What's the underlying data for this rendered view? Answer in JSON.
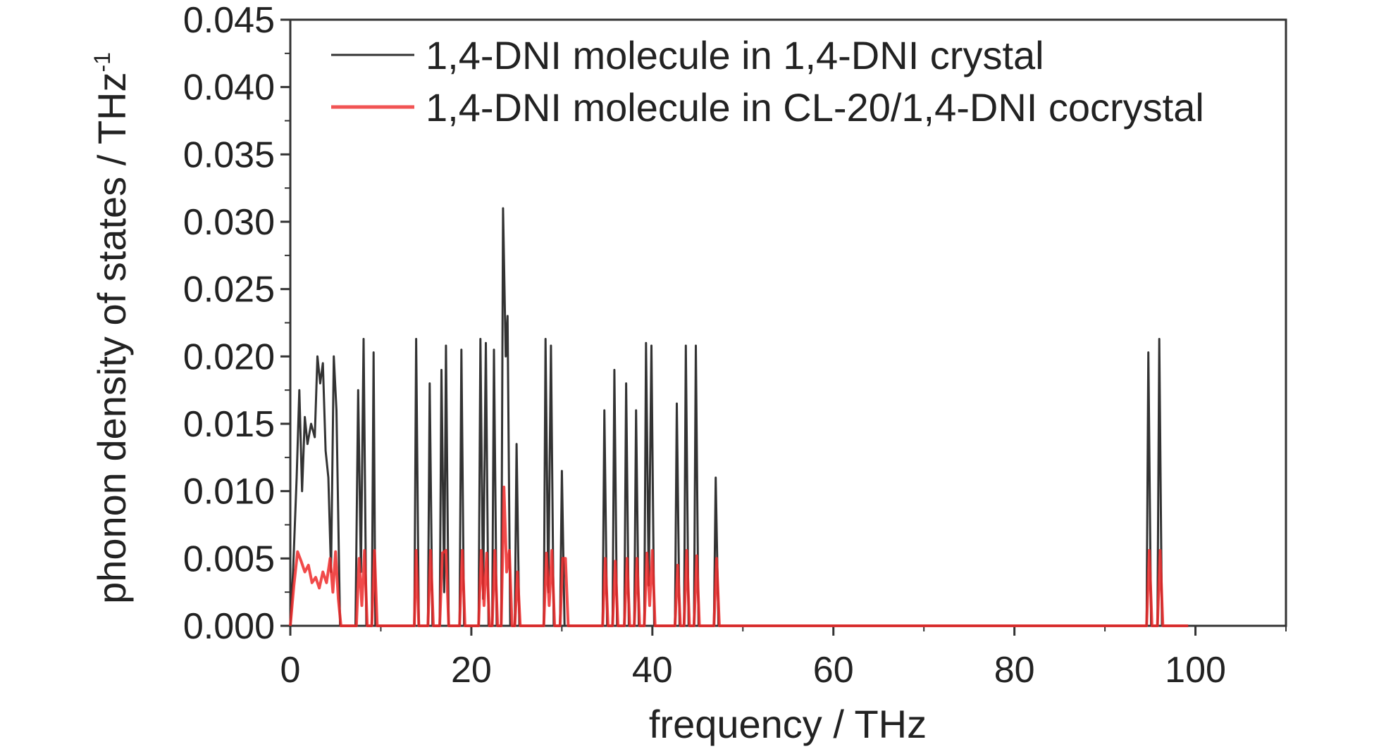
{
  "chart_data": {
    "type": "line",
    "title": "",
    "xlabel": "frequency / THz",
    "ylabel": "phonon density of states / THz",
    "ylabel_superscript": "-1",
    "xlim": [
      0,
      110
    ],
    "ylim": [
      0,
      0.045
    ],
    "x_ticks": [
      0,
      20,
      40,
      60,
      80,
      100
    ],
    "x_tick_labels": [
      "0",
      "20",
      "40",
      "60",
      "80",
      "100"
    ],
    "y_ticks": [
      0,
      0.005,
      0.01,
      0.015,
      0.02,
      0.025,
      0.03,
      0.035,
      0.04,
      0.045
    ],
    "y_tick_labels": [
      "0.000",
      "0.005",
      "0.010",
      "0.015",
      "0.020",
      "0.025",
      "0.030",
      "0.035",
      "0.040",
      "0.045"
    ],
    "grid": false,
    "legend_position": "top-left",
    "series": [
      {
        "name": "1,4-DNI molecule in 1,4-DNI crystal",
        "color": "#333333",
        "points": [
          [
            0,
            0
          ],
          [
            0.3,
            0.004
          ],
          [
            0.7,
            0.011
          ],
          [
            1.0,
            0.0175
          ],
          [
            1.3,
            0.01
          ],
          [
            1.6,
            0.0155
          ],
          [
            1.9,
            0.0135
          ],
          [
            2.3,
            0.015
          ],
          [
            2.7,
            0.014
          ],
          [
            3.0,
            0.02
          ],
          [
            3.3,
            0.018
          ],
          [
            3.6,
            0.0195
          ],
          [
            3.9,
            0.013
          ],
          [
            4.2,
            0.011
          ],
          [
            4.5,
            0.004
          ],
          [
            4.8,
            0.02
          ],
          [
            5.1,
            0.016
          ],
          [
            5.5,
            0
          ],
          [
            7.2,
            0
          ],
          [
            7.5,
            0.0175
          ],
          [
            7.8,
            0.004
          ],
          [
            8.1,
            0.0213
          ],
          [
            8.4,
            0
          ],
          [
            9.0,
            0
          ],
          [
            9.2,
            0.0203
          ],
          [
            9.4,
            0
          ],
          [
            13.7,
            0
          ],
          [
            13.9,
            0.0213
          ],
          [
            14.2,
            0
          ],
          [
            15.2,
            0
          ],
          [
            15.4,
            0.018
          ],
          [
            15.7,
            0
          ],
          [
            16.5,
            0
          ],
          [
            16.7,
            0.019
          ],
          [
            17.0,
            0.0025
          ],
          [
            17.2,
            0.0208
          ],
          [
            17.5,
            0
          ],
          [
            18.7,
            0
          ],
          [
            18.9,
            0.0205
          ],
          [
            19.2,
            0
          ],
          [
            20.8,
            0
          ],
          [
            21.0,
            0.0213
          ],
          [
            21.3,
            0.002
          ],
          [
            21.6,
            0.021
          ],
          [
            21.9,
            0
          ],
          [
            22.3,
            0
          ],
          [
            22.5,
            0.0205
          ],
          [
            22.8,
            0
          ],
          [
            23.3,
            0
          ],
          [
            23.5,
            0.031
          ],
          [
            23.8,
            0.02
          ],
          [
            24.0,
            0.023
          ],
          [
            24.3,
            0
          ],
          [
            24.8,
            0
          ],
          [
            25.0,
            0.0135
          ],
          [
            25.3,
            0
          ],
          [
            28.0,
            0
          ],
          [
            28.2,
            0.0213
          ],
          [
            28.5,
            0.0025
          ],
          [
            28.8,
            0.0208
          ],
          [
            29.1,
            0
          ],
          [
            29.8,
            0
          ],
          [
            30.0,
            0.0115
          ],
          [
            30.3,
            0
          ],
          [
            34.5,
            0
          ],
          [
            34.7,
            0.016
          ],
          [
            35.0,
            0
          ],
          [
            35.6,
            0
          ],
          [
            35.8,
            0.019
          ],
          [
            36.1,
            0
          ],
          [
            36.9,
            0
          ],
          [
            37.1,
            0.018
          ],
          [
            37.4,
            0
          ],
          [
            38.0,
            0
          ],
          [
            38.2,
            0.016
          ],
          [
            38.5,
            0
          ],
          [
            39.1,
            0
          ],
          [
            39.3,
            0.021
          ],
          [
            39.6,
            0.003
          ],
          [
            39.9,
            0.0208
          ],
          [
            40.2,
            0
          ],
          [
            42.5,
            0
          ],
          [
            42.7,
            0.0165
          ],
          [
            43.0,
            0
          ],
          [
            43.5,
            0
          ],
          [
            43.7,
            0.0208
          ],
          [
            44.0,
            0
          ],
          [
            44.6,
            0
          ],
          [
            44.8,
            0.0208
          ],
          [
            45.1,
            0
          ],
          [
            46.8,
            0
          ],
          [
            47.0,
            0.011
          ],
          [
            47.3,
            0
          ],
          [
            94.6,
            0
          ],
          [
            94.8,
            0.0203
          ],
          [
            95.1,
            0
          ],
          [
            95.8,
            0
          ],
          [
            96.0,
            0.0213
          ],
          [
            96.3,
            0
          ],
          [
            96.8,
            0
          ]
        ]
      },
      {
        "name": "1,4-DNI molecule in CL-20/1,4-DNI cocrystal",
        "color": "#ee2a2a",
        "points": [
          [
            0,
            0
          ],
          [
            0.4,
            0.003
          ],
          [
            0.8,
            0.0055
          ],
          [
            1.2,
            0.0048
          ],
          [
            1.6,
            0.004
          ],
          [
            2.0,
            0.0045
          ],
          [
            2.4,
            0.0032
          ],
          [
            2.8,
            0.0036
          ],
          [
            3.2,
            0.0028
          ],
          [
            3.6,
            0.004
          ],
          [
            4.0,
            0.0032
          ],
          [
            4.4,
            0.005
          ],
          [
            4.7,
            0.0025
          ],
          [
            5.0,
            0.0055
          ],
          [
            5.3,
            0.002
          ],
          [
            5.6,
            0
          ],
          [
            7.3,
            0
          ],
          [
            7.6,
            0.005
          ],
          [
            7.9,
            0.0015
          ],
          [
            8.2,
            0.0056
          ],
          [
            8.5,
            0
          ],
          [
            9.0,
            0
          ],
          [
            9.3,
            0.0056
          ],
          [
            9.6,
            0
          ],
          [
            13.7,
            0
          ],
          [
            13.9,
            0.0056
          ],
          [
            14.2,
            0
          ],
          [
            15.2,
            0
          ],
          [
            15.5,
            0.0056
          ],
          [
            15.8,
            0
          ],
          [
            16.5,
            0
          ],
          [
            16.8,
            0.0054
          ],
          [
            17.2,
            0.0056
          ],
          [
            17.5,
            0
          ],
          [
            18.7,
            0
          ],
          [
            19.0,
            0.0056
          ],
          [
            19.3,
            0
          ],
          [
            20.8,
            0
          ],
          [
            21.1,
            0.0056
          ],
          [
            21.4,
            0.0015
          ],
          [
            21.7,
            0.0054
          ],
          [
            22.0,
            0
          ],
          [
            22.3,
            0
          ],
          [
            22.6,
            0.0056
          ],
          [
            22.9,
            0
          ],
          [
            23.3,
            0
          ],
          [
            23.6,
            0.0103
          ],
          [
            23.9,
            0.004
          ],
          [
            24.2,
            0.0056
          ],
          [
            24.5,
            0
          ],
          [
            24.8,
            0
          ],
          [
            25.1,
            0.004
          ],
          [
            25.4,
            0
          ],
          [
            28.0,
            0
          ],
          [
            28.3,
            0.0054
          ],
          [
            28.6,
            0.0015
          ],
          [
            28.9,
            0.0056
          ],
          [
            29.2,
            0
          ],
          [
            29.8,
            0
          ],
          [
            30.1,
            0.005
          ],
          [
            30.4,
            0.005
          ],
          [
            30.7,
            0
          ],
          [
            34.5,
            0
          ],
          [
            34.8,
            0.005
          ],
          [
            35.1,
            0
          ],
          [
            35.6,
            0
          ],
          [
            35.9,
            0.0048
          ],
          [
            36.2,
            0
          ],
          [
            36.9,
            0
          ],
          [
            37.2,
            0.005
          ],
          [
            37.5,
            0
          ],
          [
            38.0,
            0
          ],
          [
            38.3,
            0.005
          ],
          [
            38.6,
            0
          ],
          [
            39.1,
            0
          ],
          [
            39.4,
            0.0054
          ],
          [
            39.7,
            0.0015
          ],
          [
            40.0,
            0.0056
          ],
          [
            40.3,
            0
          ],
          [
            42.5,
            0
          ],
          [
            42.8,
            0.0045
          ],
          [
            43.1,
            0
          ],
          [
            43.5,
            0
          ],
          [
            43.8,
            0.0056
          ],
          [
            44.1,
            0
          ],
          [
            44.6,
            0
          ],
          [
            44.9,
            0.0052
          ],
          [
            45.2,
            0
          ],
          [
            46.8,
            0
          ],
          [
            47.1,
            0.005
          ],
          [
            47.4,
            0
          ],
          [
            94.6,
            0
          ],
          [
            94.9,
            0.0056
          ],
          [
            95.2,
            0
          ],
          [
            95.8,
            0
          ],
          [
            96.1,
            0.0056
          ],
          [
            96.4,
            0
          ],
          [
            99.2,
            0
          ]
        ]
      }
    ]
  }
}
